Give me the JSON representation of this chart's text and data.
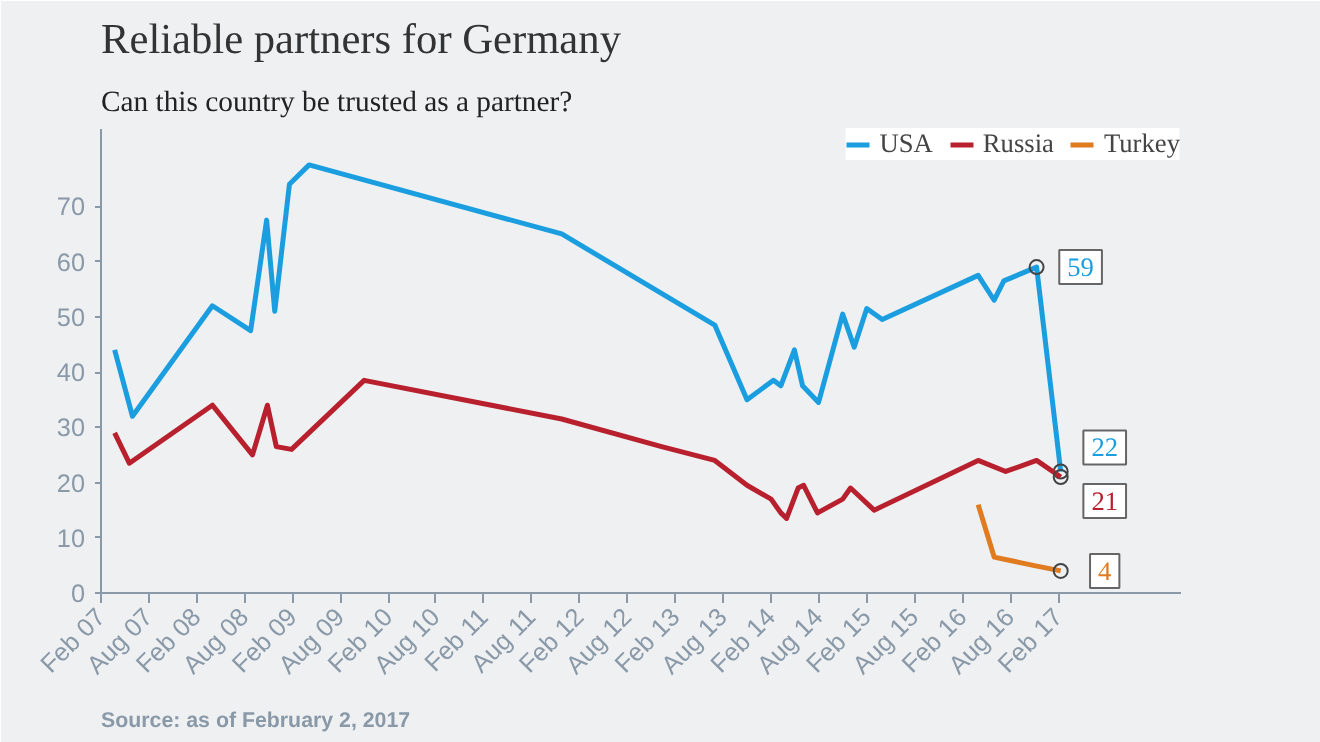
{
  "chart_data": {
    "type": "line",
    "title": "Reliable partners for Germany",
    "subtitle": "Can this country be trusted as a partner?",
    "annotations": [
      "Source: as of February 2, 2017"
    ],
    "xlim": [
      "2007-02-01",
      "2018-05-15"
    ],
    "ylim": [
      0,
      84
    ],
    "xticks": [
      {
        "value": "2007-02-01",
        "label": "Feb 07"
      },
      {
        "value": "2007-08-01",
        "label": "Aug 07"
      },
      {
        "value": "2008-02-01",
        "label": "Feb 08"
      },
      {
        "value": "2008-08-01",
        "label": "Aug 08"
      },
      {
        "value": "2009-02-01",
        "label": "Feb 09"
      },
      {
        "value": "2009-08-01",
        "label": "Aug 09"
      },
      {
        "value": "2010-02-01",
        "label": "Feb 10"
      },
      {
        "value": "2010-08-01",
        "label": "Aug 10"
      },
      {
        "value": "2011-02-01",
        "label": "Feb 11"
      },
      {
        "value": "2011-08-01",
        "label": "Aug 11"
      },
      {
        "value": "2012-02-01",
        "label": "Feb 12"
      },
      {
        "value": "2012-08-01",
        "label": "Aug 12"
      },
      {
        "value": "2013-02-01",
        "label": "Feb 13"
      },
      {
        "value": "2013-08-01",
        "label": "Aug 13"
      },
      {
        "value": "2014-02-01",
        "label": "Feb 14"
      },
      {
        "value": "2014-08-01",
        "label": "Aug 14"
      },
      {
        "value": "2015-02-01",
        "label": "Feb 15"
      },
      {
        "value": "2015-08-01",
        "label": "Aug 15"
      },
      {
        "value": "2016-02-01",
        "label": "Feb 16"
      },
      {
        "value": "2016-08-01",
        "label": "Aug 16"
      },
      {
        "value": "2017-02-01",
        "label": "Feb 17"
      }
    ],
    "yticks": [
      0,
      10,
      20,
      30,
      40,
      50,
      60,
      70
    ],
    "grid": false,
    "legend": "top right",
    "marker": "none",
    "line_style": "solid",
    "series": [
      {
        "name": "USA",
        "color": "#1a9ee0",
        "x": [
          "2007-03-25",
          "2007-06-01",
          "2008-04-01",
          "2008-08-25",
          "2008-10-25",
          "2008-11-25",
          "2009-01-20",
          "2009-04-05",
          "2011-11-25",
          "2013-07-01",
          "2013-11-01",
          "2014-02-10",
          "2014-03-10",
          "2014-05-01",
          "2014-06-01",
          "2014-08-01",
          "2014-11-01",
          "2014-12-15",
          "2015-02-01",
          "2015-04-01",
          "2016-04-01",
          "2016-06-01",
          "2016-07-08",
          "2016-11-10",
          "2017-02-10"
        ],
        "values": [
          44,
          32,
          52,
          47.5,
          67.5,
          51,
          74,
          77.5,
          65,
          48.5,
          35,
          38.5,
          37.5,
          44,
          37.5,
          34.5,
          50.5,
          44.5,
          51.5,
          49.5,
          57.5,
          53,
          56.5,
          59,
          22
        ],
        "value_labels": [
          null,
          null,
          null,
          null,
          null,
          null,
          null,
          null,
          null,
          null,
          null,
          null,
          null,
          null,
          null,
          null,
          null,
          null,
          null,
          null,
          null,
          null,
          null,
          "59",
          "22"
        ]
      },
      {
        "name": "Russia",
        "color": "#b8202e",
        "x": [
          "2007-03-25",
          "2007-05-20",
          "2008-04-01",
          "2008-09-01",
          "2008-10-28",
          "2008-12-01",
          "2009-01-28",
          "2009-11-01",
          "2011-11-25",
          "2012-12-10",
          "2013-07-01",
          "2013-11-01",
          "2014-02-01",
          "2014-03-10",
          "2014-04-01",
          "2014-05-15",
          "2014-06-05",
          "2014-07-28",
          "2014-11-01",
          "2014-12-01",
          "2015-03-01",
          "2016-04-01",
          "2016-07-15",
          "2016-11-10",
          "2017-02-10"
        ],
        "values": [
          29,
          23.5,
          34,
          25,
          34,
          26.5,
          26,
          38.5,
          31.5,
          26.5,
          24,
          19.5,
          17,
          14.5,
          13.5,
          19,
          19.5,
          14.5,
          17,
          19,
          15,
          24,
          22,
          24,
          21
        ],
        "value_labels": [
          null,
          null,
          null,
          null,
          null,
          null,
          null,
          null,
          null,
          null,
          null,
          null,
          null,
          null,
          null,
          null,
          null,
          null,
          null,
          null,
          null,
          null,
          null,
          null,
          "21"
        ]
      },
      {
        "name": "Turkey",
        "color": "#e07b20",
        "x": [
          "2016-04-01",
          "2016-06-01",
          "2016-10-28",
          "2017-02-10"
        ],
        "values": [
          16,
          6.5,
          5,
          4
        ],
        "value_labels": [
          null,
          null,
          null,
          "4"
        ]
      }
    ]
  }
}
